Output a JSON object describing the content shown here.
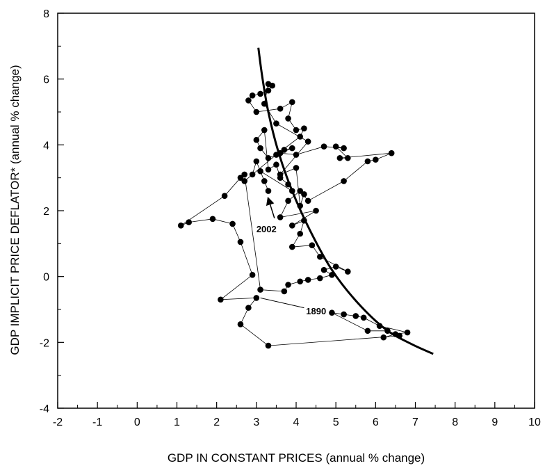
{
  "chart_data": {
    "type": "scatter",
    "xlabel": "GDP IN CONSTANT PRICES (annual % change)",
    "ylabel": "GDP IMPLICIT PRICE DEFLATOR* (annual % change)",
    "xlim": [
      -2,
      10
    ],
    "ylim": [
      -4,
      8
    ],
    "xticks": [
      "-2",
      "-1",
      "0",
      "1",
      "2",
      "3",
      "4",
      "5",
      "6",
      "7",
      "8",
      "9",
      "10"
    ],
    "yticks": [
      "-4",
      "-2",
      "0",
      "2",
      "4",
      "6",
      "8"
    ],
    "grid": false,
    "points": [
      [
        6.2,
        -1.85
      ],
      [
        6.5,
        -1.75
      ],
      [
        6.8,
        -1.7
      ],
      [
        6.1,
        -1.5
      ],
      [
        5.7,
        -1.25
      ],
      [
        5.5,
        -1.2
      ],
      [
        5.2,
        -1.15
      ],
      [
        4.9,
        -1.1
      ],
      [
        5.8,
        -1.65
      ],
      [
        6.3,
        -1.65
      ],
      [
        6.6,
        -1.8
      ],
      [
        3.3,
        -2.1
      ],
      [
        2.6,
        -1.45
      ],
      [
        2.8,
        -0.95
      ],
      [
        3.0,
        -0.65
      ],
      [
        2.1,
        -0.7
      ],
      [
        2.9,
        0.05
      ],
      [
        2.6,
        1.05
      ],
      [
        2.4,
        1.6
      ],
      [
        1.9,
        1.75
      ],
      [
        1.3,
        1.65
      ],
      [
        1.1,
        1.55
      ],
      [
        2.2,
        2.45
      ],
      [
        2.6,
        3.0
      ],
      [
        2.7,
        3.1
      ],
      [
        3.1,
        -0.4
      ],
      [
        3.7,
        -0.45
      ],
      [
        3.8,
        -0.25
      ],
      [
        4.1,
        -0.15
      ],
      [
        4.3,
        -0.1
      ],
      [
        4.6,
        -0.05
      ],
      [
        4.9,
        0.05
      ],
      [
        4.7,
        0.2
      ],
      [
        5.0,
        0.3
      ],
      [
        5.3,
        0.15
      ],
      [
        4.6,
        0.6
      ],
      [
        4.4,
        0.95
      ],
      [
        3.9,
        0.9
      ],
      [
        4.1,
        1.3
      ],
      [
        4.2,
        1.7
      ],
      [
        3.9,
        1.55
      ],
      [
        4.5,
        2.0
      ],
      [
        3.6,
        1.8
      ],
      [
        3.8,
        2.3
      ],
      [
        4.1,
        2.6
      ],
      [
        4.3,
        2.3
      ],
      [
        5.2,
        2.9
      ],
      [
        5.8,
        3.5
      ],
      [
        6.0,
        3.55
      ],
      [
        6.4,
        3.75
      ],
      [
        5.1,
        3.6
      ],
      [
        5.3,
        3.6
      ],
      [
        5.0,
        3.95
      ],
      [
        5.2,
        3.9
      ],
      [
        4.7,
        3.95
      ],
      [
        4.0,
        3.7
      ],
      [
        3.6,
        3.75
      ],
      [
        3.7,
        3.85
      ],
      [
        3.9,
        3.9
      ],
      [
        3.3,
        3.6
      ],
      [
        3.1,
        3.9
      ],
      [
        3.0,
        4.15
      ],
      [
        3.2,
        4.45
      ],
      [
        3.3,
        3.25
      ],
      [
        3.5,
        3.4
      ],
      [
        3.6,
        3.0
      ],
      [
        3.8,
        2.8
      ],
      [
        3.9,
        2.6
      ],
      [
        3.1,
        3.2
      ],
      [
        3.2,
        2.9
      ],
      [
        3.3,
        2.6
      ],
      [
        3.0,
        3.5
      ],
      [
        2.9,
        3.1
      ],
      [
        2.7,
        2.9
      ],
      [
        3.5,
        3.7
      ],
      [
        4.1,
        4.25
      ],
      [
        4.2,
        4.5
      ],
      [
        4.0,
        4.45
      ],
      [
        3.8,
        4.8
      ],
      [
        3.9,
        5.3
      ],
      [
        3.6,
        5.1
      ],
      [
        3.0,
        5.0
      ],
      [
        2.8,
        5.35
      ],
      [
        2.9,
        5.5
      ],
      [
        3.1,
        5.55
      ],
      [
        3.3,
        5.65
      ],
      [
        3.4,
        5.8
      ],
      [
        3.3,
        5.85
      ],
      [
        3.2,
        5.25
      ],
      [
        3.5,
        4.65
      ],
      [
        4.3,
        4.1
      ],
      [
        3.6,
        3.1
      ],
      [
        4.0,
        3.3
      ],
      [
        4.1,
        2.15
      ],
      [
        4.2,
        2.5
      ]
    ],
    "curve": [
      [
        3.05,
        6.95
      ],
      [
        3.15,
        6.05
      ],
      [
        3.3,
        5.0
      ],
      [
        3.55,
        3.8
      ],
      [
        3.9,
        2.6
      ],
      [
        4.35,
        1.4
      ],
      [
        4.9,
        0.2
      ],
      [
        5.55,
        -0.8
      ],
      [
        6.25,
        -1.6
      ],
      [
        6.9,
        -2.05
      ],
      [
        7.45,
        -2.35
      ]
    ],
    "annotations": [
      {
        "text": "2002",
        "x": 3.0,
        "y": 1.35,
        "arrow_to": [
          3.3,
          2.45
        ]
      },
      {
        "text": "1890",
        "x": 4.25,
        "y": -1.15,
        "line_from": [
          3.1,
          -0.65
        ],
        "line_to": [
          4.2,
          -0.95
        ]
      }
    ]
  }
}
